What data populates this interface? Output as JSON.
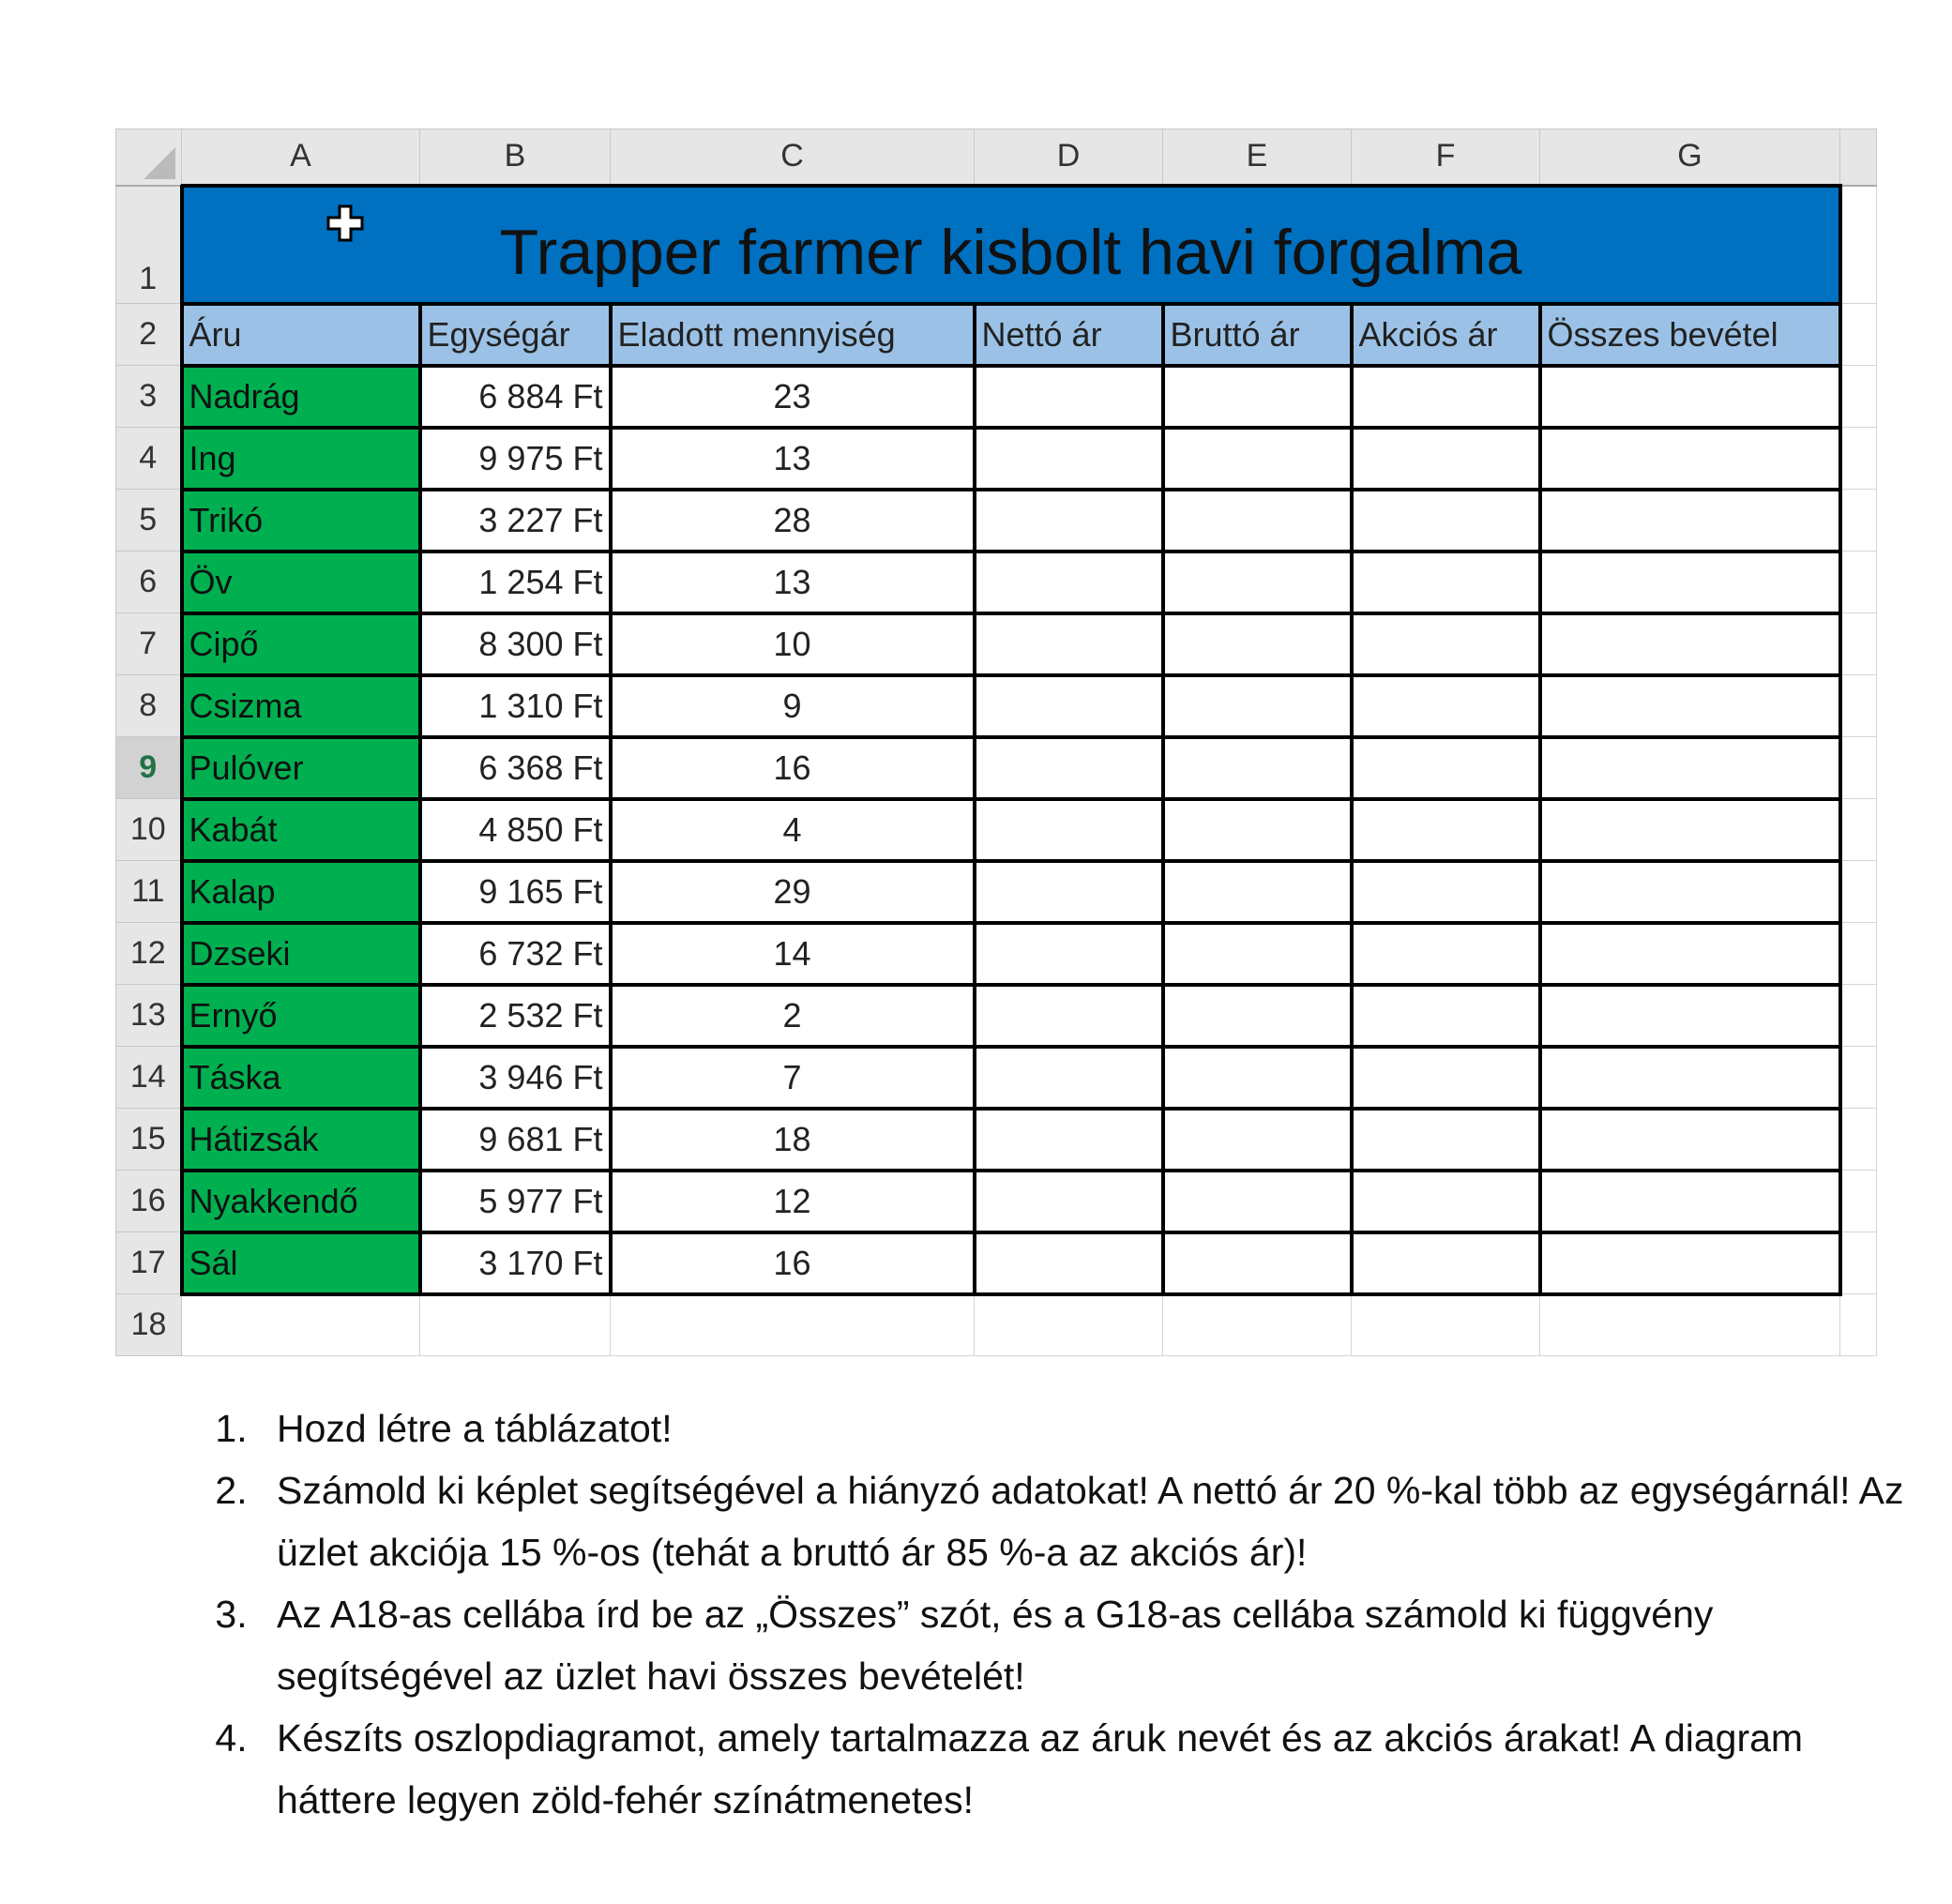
{
  "columns": [
    "A",
    "B",
    "C",
    "D",
    "E",
    "F",
    "G"
  ],
  "title": "Trapper farmer kisbolt havi forgalma",
  "headers": [
    "Áru",
    "Egységár",
    "Eladott mennyiség",
    "Nettó ár",
    "Bruttó ár",
    "Akciós ár",
    "Összes bevétel"
  ],
  "selected_row": 9,
  "rows": [
    {
      "name": "Nadrág",
      "price": "6 884 Ft",
      "qty": "23"
    },
    {
      "name": "Ing",
      "price": "9 975 Ft",
      "qty": "13"
    },
    {
      "name": "Trikó",
      "price": "3 227 Ft",
      "qty": "28"
    },
    {
      "name": "Öv",
      "price": "1 254 Ft",
      "qty": "13"
    },
    {
      "name": "Cipő",
      "price": "8 300 Ft",
      "qty": "10"
    },
    {
      "name": "Csizma",
      "price": "1 310 Ft",
      "qty": "9"
    },
    {
      "name": "Pulóver",
      "price": "6 368 Ft",
      "qty": "16"
    },
    {
      "name": "Kabát",
      "price": "4 850 Ft",
      "qty": "4"
    },
    {
      "name": "Kalap",
      "price": "9 165 Ft",
      "qty": "29"
    },
    {
      "name": "Dzseki",
      "price": "6 732 Ft",
      "qty": "14"
    },
    {
      "name": "Ernyő",
      "price": "2 532 Ft",
      "qty": "2"
    },
    {
      "name": "Táska",
      "price": "3 946 Ft",
      "qty": "7"
    },
    {
      "name": "Hátizsák",
      "price": "9 681 Ft",
      "qty": "18"
    },
    {
      "name": "Nyakkendő",
      "price": "5 977 Ft",
      "qty": "12"
    },
    {
      "name": "Sál",
      "price": "3 170 Ft",
      "qty": "16"
    }
  ],
  "colors": {
    "title_bg": "#0070C0",
    "header_bg": "#9BC2E6",
    "name_bg": "#00B050"
  },
  "instructions": [
    "Hozd létre a táblázatot!",
    "Számold ki képlet segítségével a hiányzó adatokat! A nettó ár 20 %-kal több az egységárnál! Az üzlet akciója 15 %-os (tehát a bruttó ár 85 %-a az akciós ár)!",
    "Az A18-as cellába írd be az „Összes” szót, és a G18-as cellába számold ki függvény segítségével az üzlet havi összes bevételét!",
    "Készíts oszlopdiagramot, amely tartalmazza az áruk nevét és az akciós árakat! A diagram háttere legyen zöld-fehér színátmenetes!"
  ]
}
